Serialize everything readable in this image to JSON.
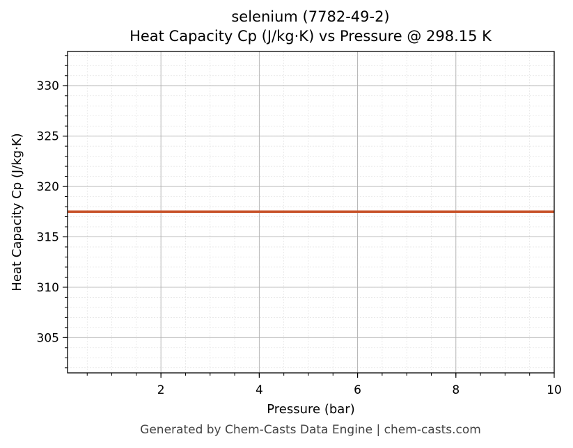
{
  "chart_data": {
    "type": "line",
    "title": "selenium (7782-49-2)",
    "subtitle": "Heat Capacity Cp (J/kg·K) vs Pressure @ 298.15 K",
    "xlabel": "Pressure (bar)",
    "ylabel": "Heat Capacity Cp (J/kg·K)",
    "xlim": [
      0.1,
      10
    ],
    "ylim": [
      301.5,
      333.4
    ],
    "x_ticks": [
      2,
      4,
      6,
      8,
      10
    ],
    "y_ticks": [
      305,
      310,
      315,
      320,
      325,
      330
    ],
    "grid": true,
    "series": [
      {
        "color": "#c8532a",
        "x": [
          0.1,
          1,
          2,
          3,
          4,
          5,
          6,
          7,
          8,
          9,
          10
        ],
        "y": [
          317.5,
          317.5,
          317.5,
          317.5,
          317.5,
          317.5,
          317.5,
          317.5,
          317.5,
          317.5,
          317.5
        ]
      }
    ]
  },
  "footer": "Generated by Chem-Casts Data Engine | chem-casts.com"
}
